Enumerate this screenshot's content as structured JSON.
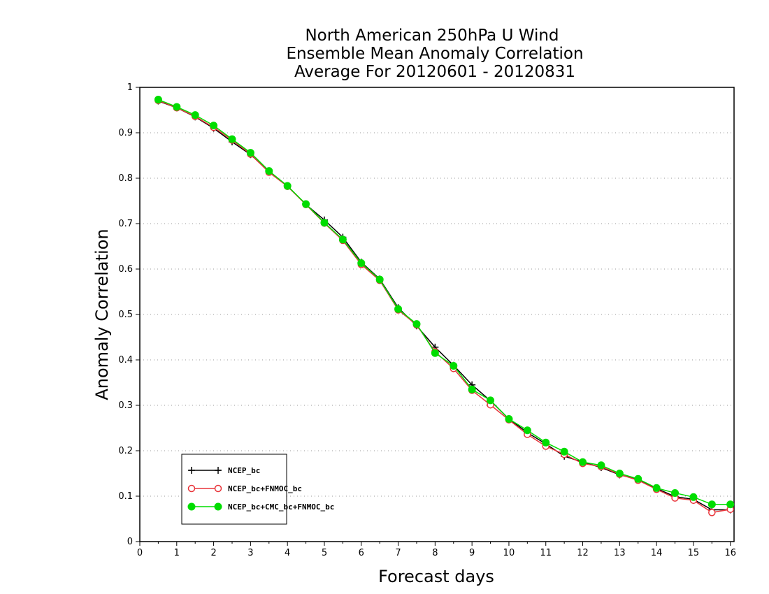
{
  "chart_data": {
    "type": "line",
    "title_lines": [
      "North American 250hPa U Wind",
      "Ensemble Mean Anomaly Correlation",
      "Average For 20120601 - 20120831"
    ],
    "xlabel": "Forecast days",
    "ylabel": "Anomaly Correlation",
    "xlim": [
      0,
      16.1
    ],
    "ylim": [
      0,
      1
    ],
    "xticks": [
      "0",
      "1",
      "2",
      "3",
      "4",
      "5",
      "6",
      "7",
      "8",
      "9",
      "10",
      "11",
      "12",
      "13",
      "14",
      "15",
      "16"
    ],
    "yticks": [
      "0",
      "0.1",
      "0.2",
      "0.3",
      "0.4",
      "0.5",
      "0.6",
      "0.7",
      "0.8",
      "0.9",
      "1"
    ],
    "grid": "horizontal dotted",
    "legend_position": "bottom-left",
    "x": [
      0.5,
      1,
      1.5,
      2,
      2.5,
      3,
      3.5,
      4,
      4.5,
      5,
      5.5,
      6,
      6.5,
      7,
      7.5,
      8,
      8.5,
      9,
      9.5,
      10,
      10.5,
      11,
      11.5,
      12,
      12.5,
      13,
      13.5,
      14,
      14.5,
      15,
      15.5,
      16
    ],
    "series": [
      {
        "name": "NCEP_bc",
        "color": "#000000",
        "marker": "plus",
        "values": [
          0.97,
          0.955,
          0.935,
          0.91,
          0.88,
          0.852,
          0.815,
          0.783,
          0.742,
          0.708,
          0.67,
          0.615,
          0.578,
          0.515,
          0.475,
          0.428,
          0.388,
          0.345,
          0.31,
          0.27,
          0.24,
          0.215,
          0.188,
          0.175,
          0.163,
          0.147,
          0.137,
          0.117,
          0.099,
          0.093,
          0.07,
          0.07
        ]
      },
      {
        "name": "NCEP_bc+FNMOC_bc",
        "color": "#e8343a",
        "marker": "open-circle",
        "values": [
          0.971,
          0.955,
          0.936,
          0.912,
          0.884,
          0.853,
          0.813,
          0.782,
          0.742,
          0.701,
          0.663,
          0.61,
          0.575,
          0.51,
          0.477,
          0.418,
          0.381,
          0.333,
          0.301,
          0.268,
          0.236,
          0.21,
          0.192,
          0.172,
          0.165,
          0.148,
          0.135,
          0.115,
          0.096,
          0.091,
          0.064,
          0.071
        ]
      },
      {
        "name": "NCEP_bc+CMC_bc+FNMOC_bc",
        "color": "#00dd00",
        "marker": "filled-circle",
        "values": [
          0.973,
          0.957,
          0.939,
          0.916,
          0.886,
          0.856,
          0.816,
          0.783,
          0.743,
          0.702,
          0.665,
          0.613,
          0.577,
          0.512,
          0.479,
          0.415,
          0.387,
          0.335,
          0.311,
          0.27,
          0.245,
          0.218,
          0.198,
          0.175,
          0.168,
          0.15,
          0.138,
          0.118,
          0.107,
          0.098,
          0.082,
          0.082
        ]
      }
    ]
  }
}
